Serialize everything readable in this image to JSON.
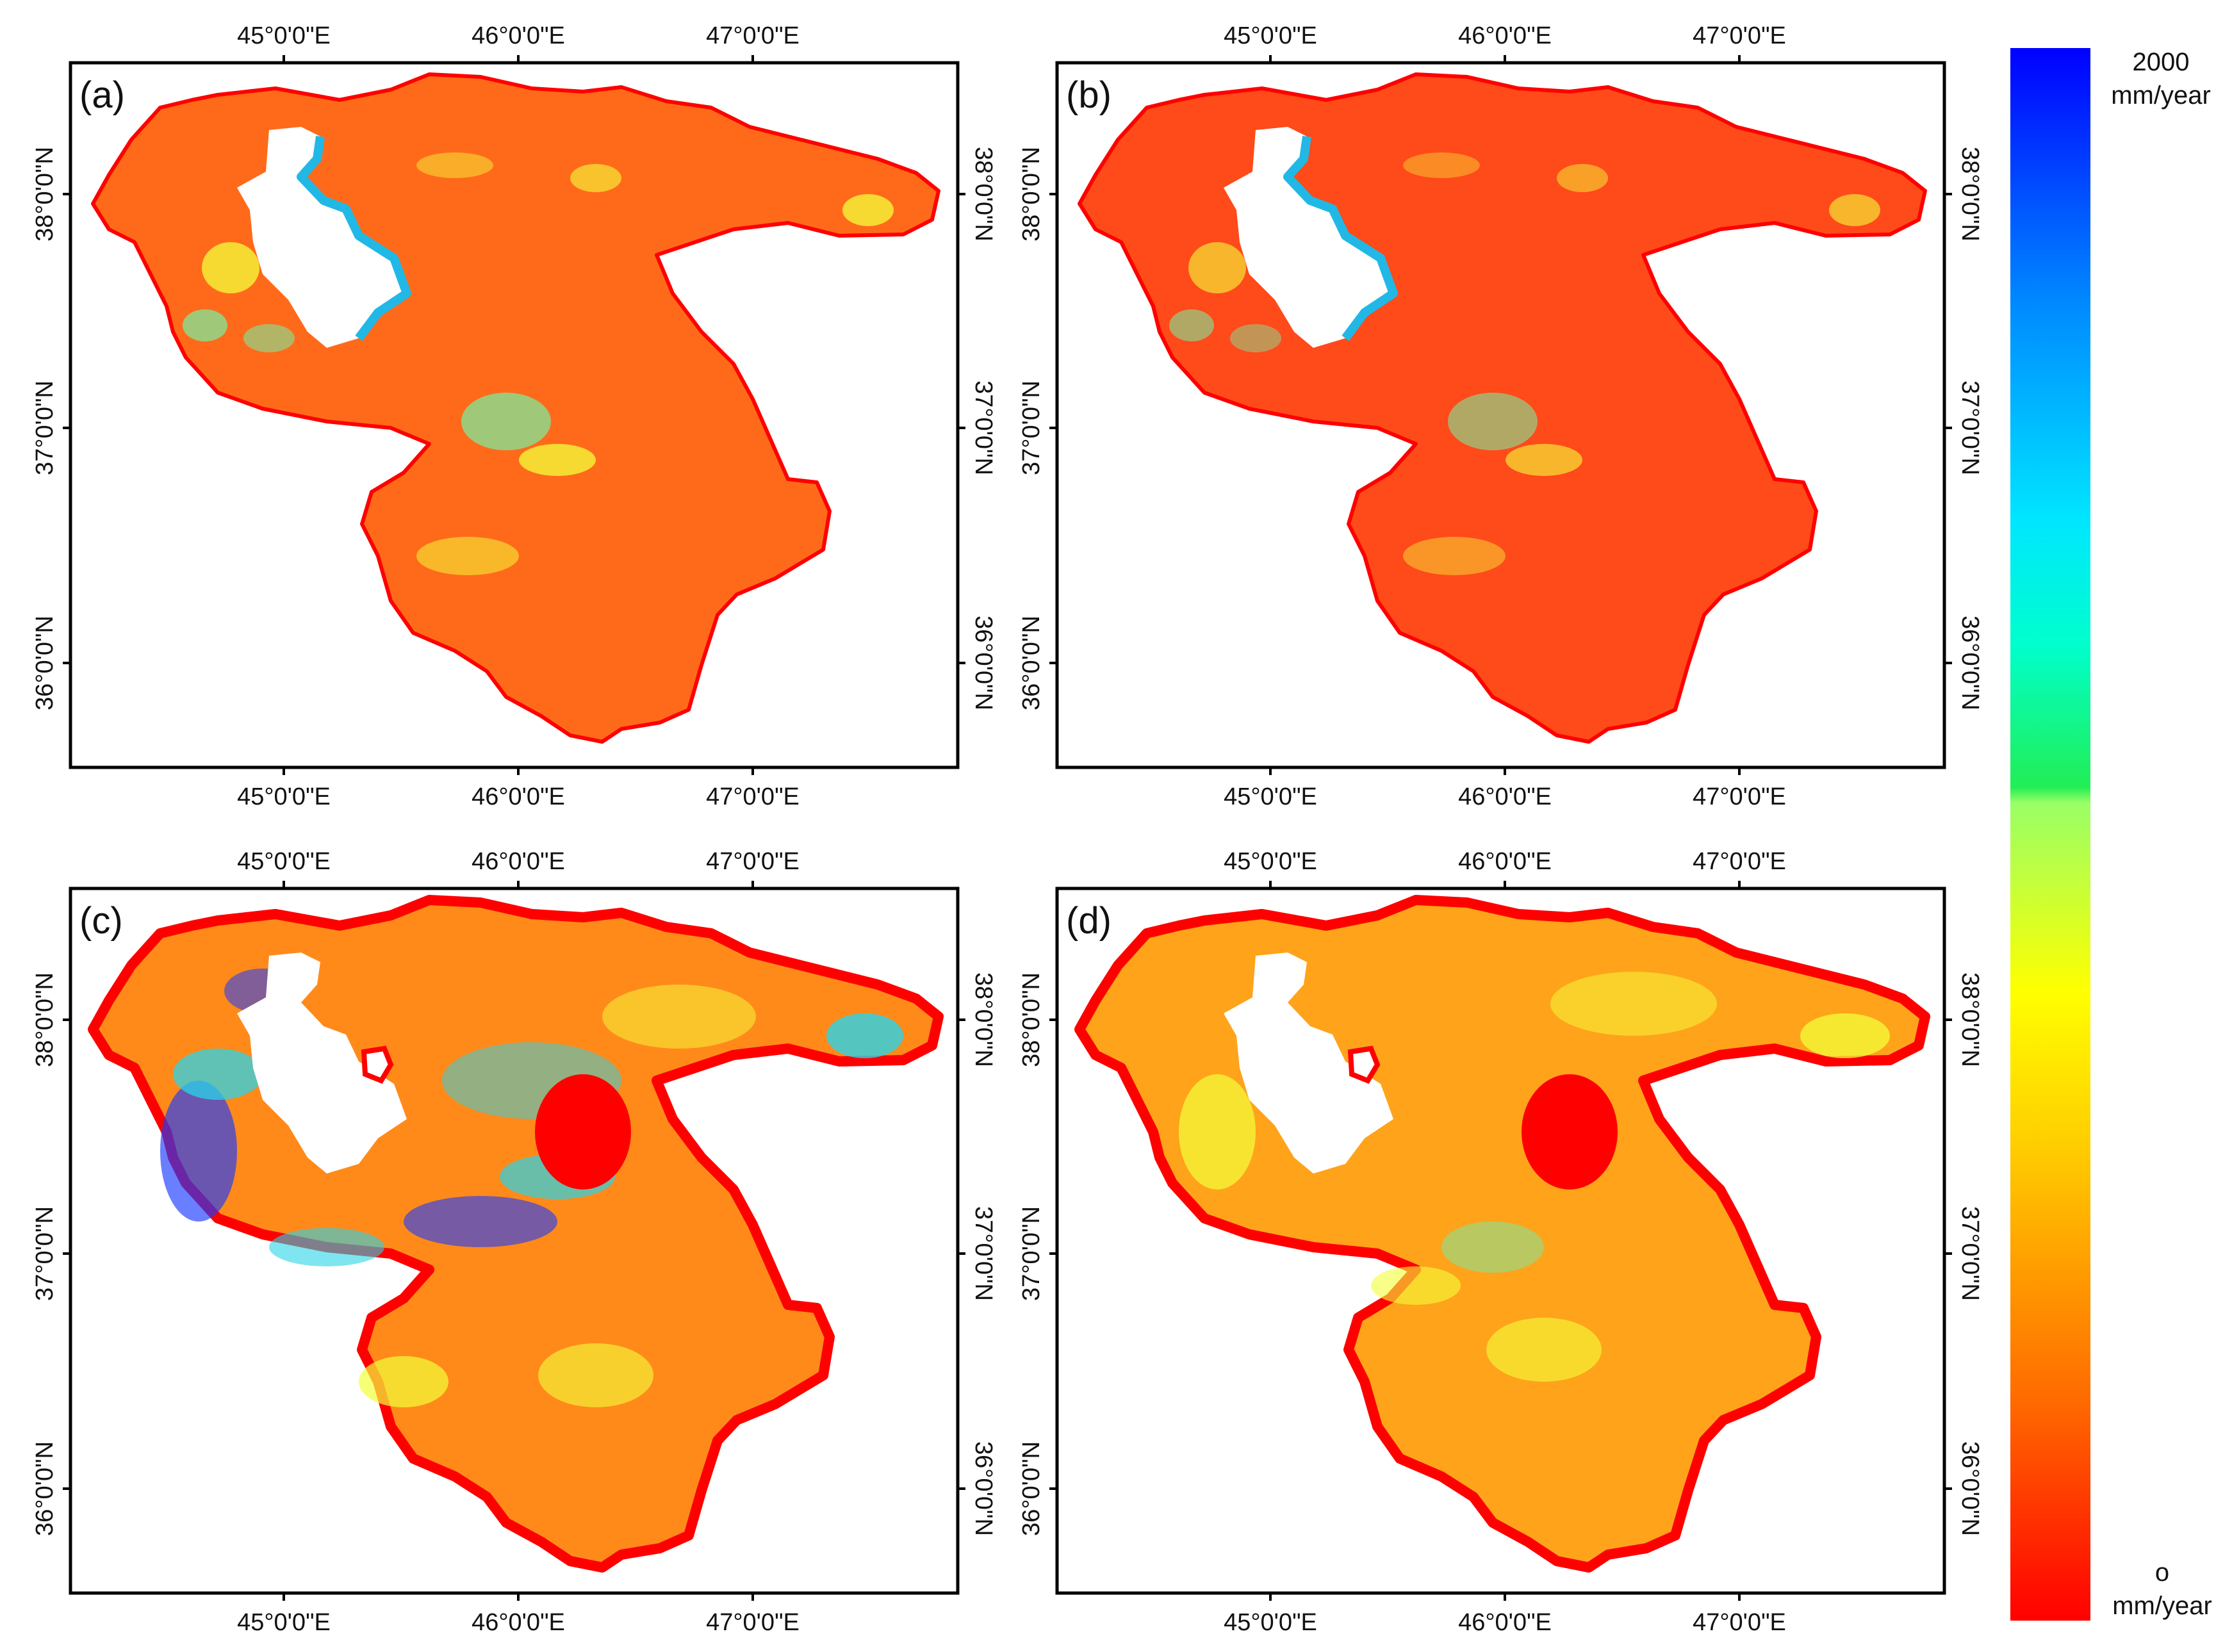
{
  "panels": [
    {
      "label": "(a)",
      "variant": "a"
    },
    {
      "label": "(b)",
      "variant": "b"
    },
    {
      "label": "(c)",
      "variant": "c"
    },
    {
      "label": "(d)",
      "variant": "d"
    }
  ],
  "axes": {
    "lon_labels": [
      "45°0'0\"E",
      "46°0'0\"E",
      "47°0'0\"E"
    ],
    "lat_labels": [
      "38°0'0\"N",
      "37°0'0\"N",
      "36°0'0\"N"
    ]
  },
  "colorbar": {
    "max_value": "2000",
    "max_unit": "mm/year",
    "min_value": "o",
    "min_unit": "mm/year",
    "colors": [
      "#ff0000",
      "#ff7800",
      "#ffcc00",
      "#ffff00",
      "#99ff66",
      "#00dd66",
      "#00ffff",
      "#00aaff",
      "#0000ff"
    ]
  },
  "map_colors": {
    "base_a": "#ff6a1a",
    "base_b": "#ff4a1a",
    "base_c": "#ff8a1a",
    "base_d": "#ffa31a",
    "border": "#ff0000",
    "lake": "#ffffff",
    "lake_rim": "#22b8e6",
    "highlight_green": "#7fe89a",
    "highlight_yellow": "#f3ff3a",
    "highlight_blue": "#1a3bff",
    "highlight_cyan": "#2ad4e8"
  }
}
